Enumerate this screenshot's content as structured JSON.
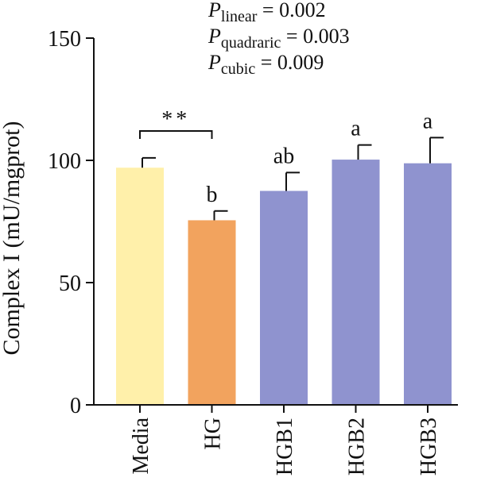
{
  "chart_data": {
    "type": "bar",
    "ylabel": "Complex I (mU/mgprot)",
    "ylim": [
      0,
      150
    ],
    "yticks": [
      0,
      50,
      100,
      150
    ],
    "categories": [
      "Media",
      "HG",
      "HGB1",
      "HGB2",
      "HGB3"
    ],
    "values": [
      97,
      75.5,
      87.5,
      100.3,
      98.8
    ],
    "errors": [
      4,
      3.8,
      7.5,
      6,
      10.5
    ],
    "bar_colors": [
      "#FFF0AA",
      "#F2A35E",
      "#8F93CF",
      "#8F93CF",
      "#8F93CF"
    ],
    "letters": [
      "",
      "b",
      "ab",
      "a",
      "a"
    ],
    "significance": {
      "from": "Media",
      "to": "HG",
      "label": "**",
      "y": 112
    },
    "stats": [
      {
        "symbol": "P",
        "subscript": "linear",
        "text": " = 0.002"
      },
      {
        "symbol": "P",
        "subscript": "quadraric",
        "text": " = 0.003"
      },
      {
        "symbol": "P",
        "subscript": "cubic",
        "text": " = 0.009"
      }
    ]
  }
}
